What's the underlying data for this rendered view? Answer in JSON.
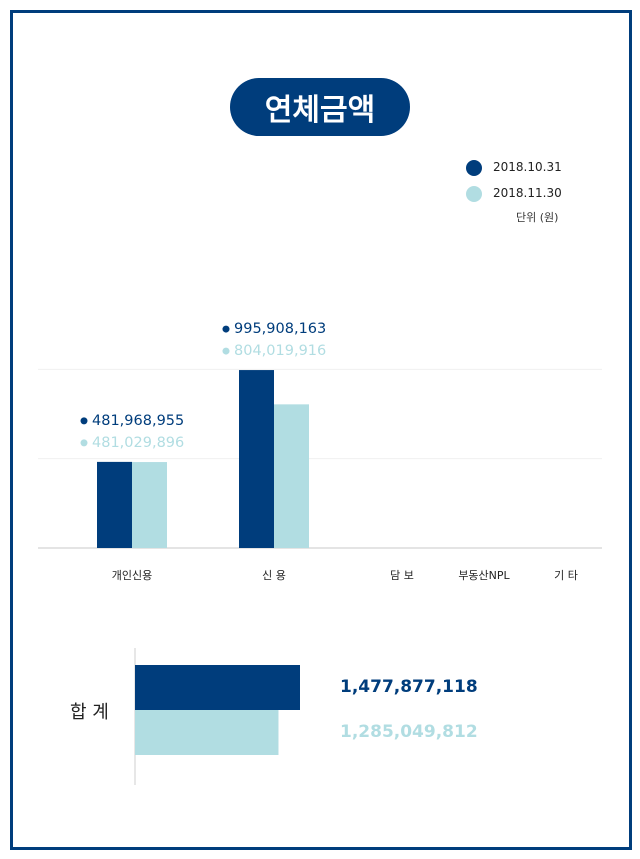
{
  "title": "연체금액",
  "legend": [
    {
      "label": "2018.10.31",
      "color": "#003d7c"
    },
    {
      "label": "2018.11.30",
      "color": "#b1dde2"
    }
  ],
  "unit": "단위 (원)",
  "chart_data": [
    {
      "type": "bar",
      "categories": [
        "개인신용",
        "신 용",
        "담 보",
        "부동산NPL",
        "기 타"
      ],
      "series": [
        {
          "name": "2018.10.31",
          "color": "#003d7c",
          "values": [
            481968955,
            995908163,
            null,
            null,
            null
          ]
        },
        {
          "name": "2018.11.30",
          "color": "#b1dde2",
          "values": [
            481029896,
            804019916,
            null,
            null,
            null
          ]
        }
      ],
      "data_labels": [
        [
          "481,968,955",
          "481,029,896"
        ],
        [
          "995,908,163",
          "804,019,916"
        ],
        [
          null,
          null
        ],
        [
          null,
          null
        ],
        [
          null,
          null
        ]
      ],
      "grid": true,
      "legend_position": "top-right"
    },
    {
      "type": "bar",
      "orientation": "horizontal",
      "categories": [
        "합 계"
      ],
      "series": [
        {
          "name": "2018.10.31",
          "color": "#003d7c",
          "values": [
            1477877118
          ]
        },
        {
          "name": "2018.11.30",
          "color": "#b1dde2",
          "values": [
            1285049812
          ]
        }
      ],
      "data_labels": [
        "1,477,877,118",
        "1,285,049,812"
      ]
    }
  ]
}
